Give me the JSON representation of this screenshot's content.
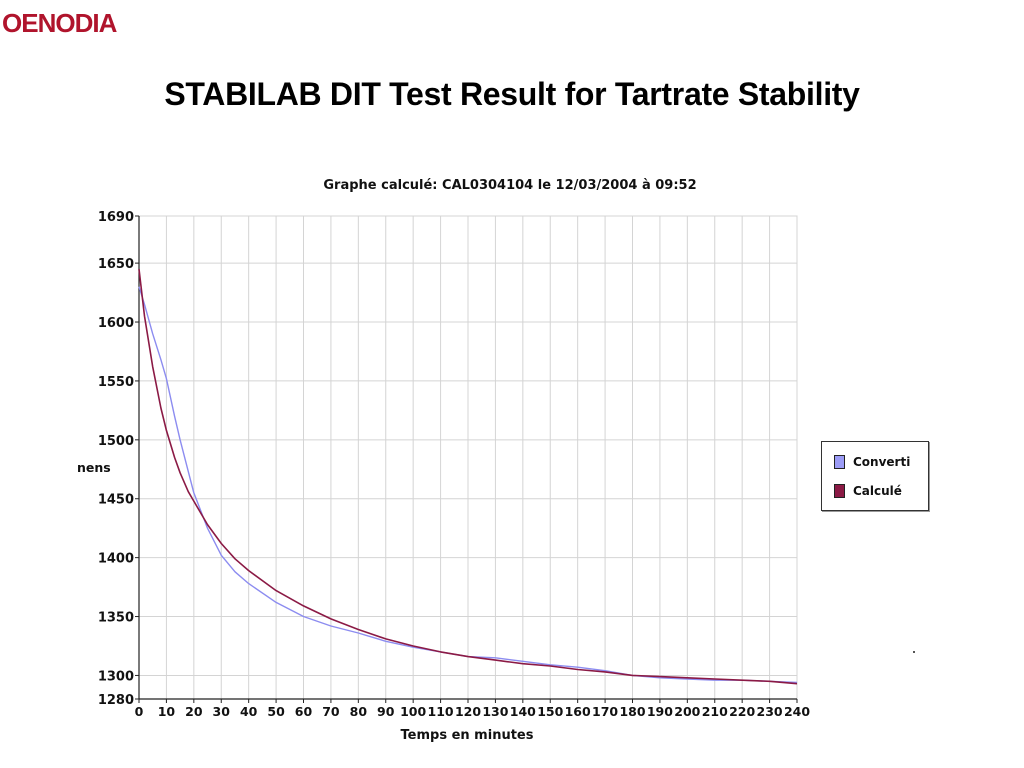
{
  "logo": {
    "text": "OENODIA",
    "color": "#b0142c"
  },
  "slide": {
    "title": "STABILAB DIT Test Result for Tartrate Stability"
  },
  "chart_data": {
    "type": "line",
    "title": "Graphe calculé: CAL0304104 le 12/03/2004 à 09:52",
    "xlabel": "Temps en minutes",
    "ylabel": "nens",
    "xlim": [
      0,
      240
    ],
    "ylim": [
      1280,
      1690
    ],
    "x_ticks": [
      0,
      10,
      20,
      30,
      40,
      50,
      60,
      70,
      80,
      90,
      100,
      110,
      120,
      130,
      140,
      150,
      160,
      170,
      180,
      190,
      200,
      210,
      220,
      230,
      240
    ],
    "y_ticks": [
      1690,
      1650,
      1600,
      1550,
      1500,
      1450,
      1400,
      1350,
      1300,
      1280
    ],
    "grid": true,
    "legend_position": "right",
    "series": [
      {
        "name": "Converti",
        "color": "#8c8cf0",
        "x": [
          0,
          2,
          5,
          8,
          10,
          13,
          15,
          18,
          20,
          25,
          30,
          35,
          40,
          50,
          60,
          70,
          80,
          90,
          100,
          110,
          120,
          130,
          140,
          150,
          160,
          170,
          180,
          190,
          200,
          210,
          220,
          230,
          240
        ],
        "y": [
          1630,
          1615,
          1590,
          1568,
          1552,
          1520,
          1500,
          1473,
          1455,
          1425,
          1402,
          1388,
          1378,
          1362,
          1350,
          1342,
          1336,
          1329,
          1324,
          1320,
          1316,
          1315,
          1312,
          1309,
          1307,
          1304,
          1300,
          1298,
          1297,
          1296,
          1296,
          1295,
          1294
        ]
      },
      {
        "name": "Calculé",
        "color": "#8b1a45",
        "x": [
          0,
          2,
          5,
          8,
          10,
          13,
          15,
          18,
          20,
          25,
          30,
          35,
          40,
          50,
          60,
          70,
          80,
          90,
          100,
          110,
          120,
          130,
          140,
          150,
          160,
          170,
          180,
          190,
          200,
          210,
          220,
          230,
          240
        ],
        "y": [
          1645,
          1605,
          1562,
          1527,
          1508,
          1485,
          1472,
          1456,
          1448,
          1428,
          1412,
          1399,
          1389,
          1372,
          1359,
          1348,
          1339,
          1331,
          1325,
          1320,
          1316,
          1313,
          1310,
          1308,
          1305,
          1303,
          1300,
          1299,
          1298,
          1297,
          1296,
          1295,
          1293
        ]
      }
    ]
  }
}
